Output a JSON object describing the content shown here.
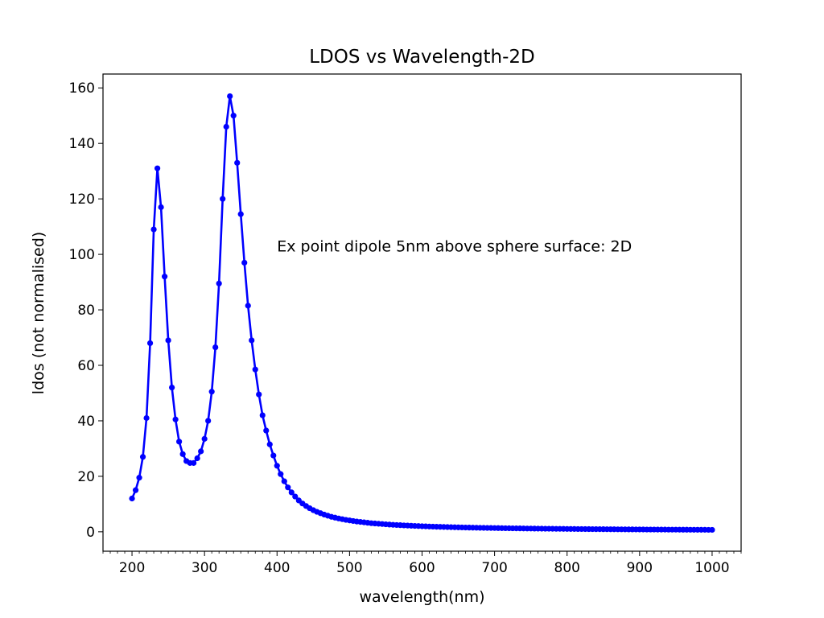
{
  "chart_data": {
    "type": "line",
    "title": "LDOS vs Wavelength-2D",
    "xlabel": "wavelength(nm)",
    "ylabel": "ldos (not normalised)",
    "xlim": [
      160,
      1040
    ],
    "ylim": [
      -7,
      165
    ],
    "x_ticks": [
      200,
      300,
      400,
      500,
      600,
      700,
      800,
      900,
      1000
    ],
    "y_ticks": [
      0,
      20,
      40,
      60,
      80,
      100,
      120,
      140,
      160
    ],
    "x_minor_step": 10,
    "grid": false,
    "legend": "none",
    "marker": "circle",
    "line_color": "#0000ff",
    "annotation": {
      "text": "Ex point dipole 5nm above sphere surface: 2D",
      "x": 400,
      "y": 101
    },
    "series": [
      {
        "x": [
          200,
          205,
          210,
          215,
          220,
          225,
          230,
          235,
          240,
          245,
          250,
          255,
          260,
          265,
          270,
          275,
          280,
          285,
          290,
          295,
          300,
          305,
          310,
          315,
          320,
          325,
          330,
          335,
          340,
          345,
          350,
          355,
          360,
          365,
          370,
          375,
          380,
          385,
          390,
          395,
          400,
          405,
          410,
          415,
          420,
          425,
          430,
          435,
          440,
          445,
          450,
          455,
          460,
          465,
          470,
          475,
          480,
          485,
          490,
          495,
          500,
          505,
          510,
          515,
          520,
          525,
          530,
          535,
          540,
          545,
          550,
          555,
          560,
          565,
          570,
          575,
          580,
          585,
          590,
          595,
          600,
          605,
          610,
          615,
          620,
          625,
          630,
          635,
          640,
          645,
          650,
          655,
          660,
          665,
          670,
          675,
          680,
          685,
          690,
          695,
          700,
          705,
          710,
          715,
          720,
          725,
          730,
          735,
          740,
          745,
          750,
          755,
          760,
          765,
          770,
          775,
          780,
          785,
          790,
          795,
          800,
          805,
          810,
          815,
          820,
          825,
          830,
          835,
          840,
          845,
          850,
          855,
          860,
          865,
          870,
          875,
          880,
          885,
          890,
          895,
          900,
          905,
          910,
          915,
          920,
          925,
          930,
          935,
          940,
          945,
          950,
          955,
          960,
          965,
          970,
          975,
          980,
          985,
          990,
          995,
          1000
        ],
        "y": [
          12,
          15,
          19.5,
          27,
          41,
          68,
          109,
          131,
          117,
          92,
          69,
          52,
          40.5,
          32.5,
          28,
          25.5,
          24.8,
          24.8,
          26.5,
          29,
          33.5,
          40,
          50.5,
          66.5,
          89.5,
          120,
          146,
          157,
          150,
          133,
          114.5,
          97,
          81.5,
          69,
          58.5,
          49.5,
          42,
          36.5,
          31.5,
          27.5,
          23.8,
          20.8,
          18.2,
          16,
          14.2,
          12.7,
          11.3,
          10.2,
          9.3,
          8.5,
          7.8,
          7.2,
          6.7,
          6.2,
          5.8,
          5.4,
          5.1,
          4.8,
          4.55,
          4.3,
          4.1,
          3.9,
          3.7,
          3.55,
          3.4,
          3.25,
          3.1,
          3.0,
          2.9,
          2.8,
          2.7,
          2.6,
          2.52,
          2.45,
          2.38,
          2.3,
          2.24,
          2.18,
          2.12,
          2.06,
          2.0,
          1.95,
          1.9,
          1.86,
          1.82,
          1.78,
          1.74,
          1.7,
          1.66,
          1.63,
          1.6,
          1.57,
          1.54,
          1.51,
          1.48,
          1.46,
          1.43,
          1.41,
          1.39,
          1.37,
          1.35,
          1.33,
          1.31,
          1.29,
          1.27,
          1.25,
          1.23,
          1.22,
          1.2,
          1.18,
          1.17,
          1.15,
          1.14,
          1.12,
          1.11,
          1.1,
          1.08,
          1.07,
          1.06,
          1.05,
          1.03,
          1.02,
          1.01,
          1.0,
          0.99,
          0.98,
          0.97,
          0.96,
          0.95,
          0.94,
          0.93,
          0.92,
          0.91,
          0.9,
          0.89,
          0.88,
          0.87,
          0.86,
          0.86,
          0.85,
          0.84,
          0.83,
          0.82,
          0.82,
          0.81,
          0.8,
          0.79,
          0.79,
          0.78,
          0.77,
          0.77,
          0.76,
          0.75,
          0.75,
          0.74,
          0.73,
          0.73,
          0.72,
          0.72,
          0.71,
          0.7
        ]
      }
    ]
  }
}
